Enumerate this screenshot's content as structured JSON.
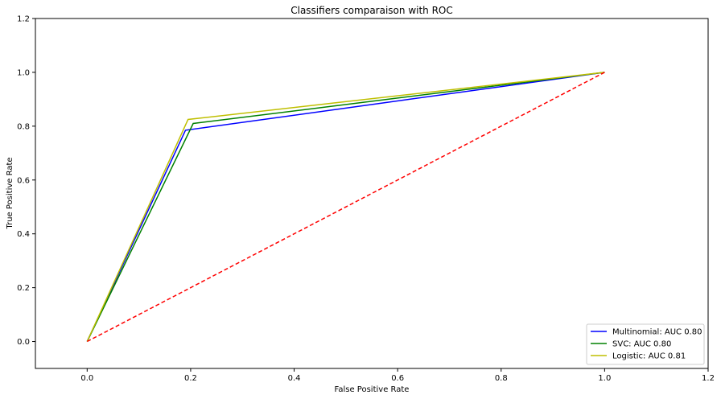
{
  "chart_data": {
    "type": "line",
    "title": "Classifiers comparaison with ROC",
    "xlabel": "False Positive Rate",
    "ylabel": "True Positive Rate",
    "xlim": [
      -0.1,
      1.2
    ],
    "ylim": [
      -0.1,
      1.2
    ],
    "xticks": [
      0.0,
      0.2,
      0.4,
      0.6,
      0.8,
      1.0,
      1.2
    ],
    "yticks": [
      0.0,
      0.2,
      0.4,
      0.6,
      0.8,
      1.0,
      1.2
    ],
    "xtick_labels": [
      "0.0",
      "0.2",
      "0.4",
      "0.6",
      "0.8",
      "1.0",
      "1.2"
    ],
    "ytick_labels": [
      "0.0",
      "0.2",
      "0.4",
      "0.6",
      "0.8",
      "1.0",
      "1.2"
    ],
    "grid": false,
    "legend_position": "bottom-right",
    "series": [
      {
        "name": "Multinomial: AUC 0.80",
        "color": "#0000ff",
        "dash": "solid",
        "x": [
          0.0,
          0.19,
          1.0
        ],
        "y": [
          0.0,
          0.785,
          1.0
        ]
      },
      {
        "name": "SVC: AUC 0.80",
        "color": "#008000",
        "dash": "solid",
        "x": [
          0.0,
          0.205,
          1.0
        ],
        "y": [
          0.0,
          0.81,
          1.0
        ]
      },
      {
        "name": "Logistic: AUC 0.81",
        "color": "#bfbf00",
        "dash": "solid",
        "x": [
          0.0,
          0.195,
          1.0
        ],
        "y": [
          0.0,
          0.825,
          1.0
        ]
      }
    ],
    "reference_line": {
      "color": "#ff0000",
      "dash": "dashed",
      "x": [
        0.0,
        1.0
      ],
      "y": [
        0.0,
        1.0
      ]
    }
  }
}
